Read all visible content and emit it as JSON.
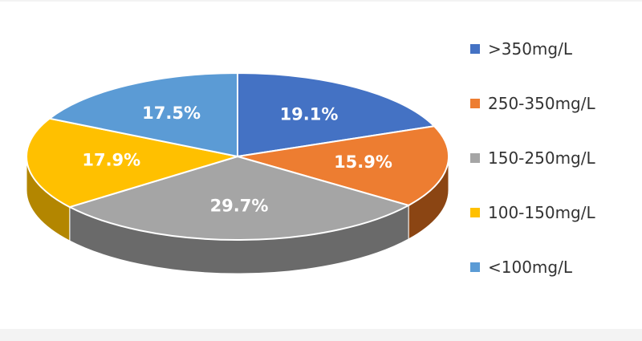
{
  "chart_data": {
    "type": "pie",
    "title": "",
    "style": "3d",
    "legend_position": "right",
    "slices": [
      {
        "name": ">350mg/L",
        "value": 19.1,
        "label": "19.1%",
        "color": "#4472C4",
        "side_color": "#2F5597"
      },
      {
        "name": "250-350mg/L",
        "value": 15.9,
        "label": "15.9%",
        "color": "#ED7D31",
        "side_color": "#8B4513"
      },
      {
        "name": "150-250mg/L",
        "value": 29.7,
        "label": "29.7%",
        "color": "#A5A5A5",
        "side_color": "#6A6A6A"
      },
      {
        "name": "100-150mg/L",
        "value": 17.9,
        "label": "17.9%",
        "color": "#FFC000",
        "side_color": "#B38600"
      },
      {
        "name": "<100mg/L",
        "value": 17.5,
        "label": "17.5%",
        "color": "#5B9BD5",
        "side_color": "#3A6E9E"
      }
    ]
  }
}
